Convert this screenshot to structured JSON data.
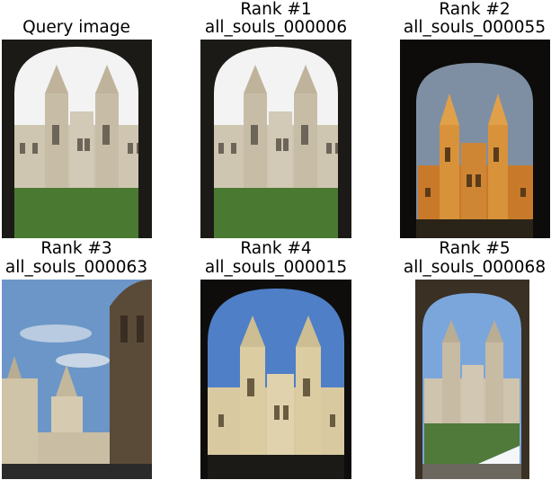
{
  "query": {
    "title": "Query image"
  },
  "results": [
    {
      "rank": "Rank #1",
      "name": "all_souls_000006"
    },
    {
      "rank": "Rank #2",
      "name": "all_souls_000055"
    },
    {
      "rank": "Rank #3",
      "name": "all_souls_000063"
    },
    {
      "rank": "Rank #4",
      "name": "all_souls_000015"
    },
    {
      "rank": "Rank #5",
      "name": "all_souls_000068"
    }
  ],
  "colors": {
    "sky_white": "#f2f2f2",
    "sky_sunset": "#7f8fa3",
    "sky_blue": "#4f7fc6",
    "stone": "#c9bfa8",
    "stone_gold": "#d8923a",
    "grass": "#4a7a32",
    "arch_dark": "#1c1a17"
  }
}
